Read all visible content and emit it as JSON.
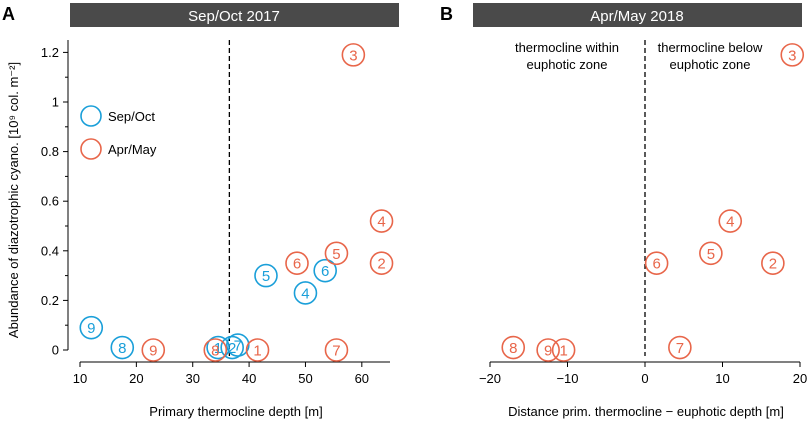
{
  "colors": {
    "sep_oct": "#1a9fd9",
    "apr_may": "#e8664a",
    "title_bar": "#4a4a4a"
  },
  "chart_data": [
    {
      "panel": "A",
      "type": "scatter",
      "title": "Sep/Oct 2017",
      "xlabel": "Primary thermocline depth [m]",
      "ylabel": "Abundance of diazotrophic cyano. [10⁹ col. m⁻²]",
      "xlim": [
        10,
        65
      ],
      "ylim": [
        0,
        1.25
      ],
      "xticks": [
        10,
        20,
        30,
        40,
        50,
        60
      ],
      "yticks": [
        0,
        0.2,
        0.4,
        0.6,
        0.8,
        1,
        1.2
      ],
      "ytick_labels": [
        "0",
        "0.2",
        "0.4",
        "0.6",
        "0.8",
        "1",
        "1.2"
      ],
      "reference_line_x": 36.5,
      "legend": [
        {
          "label": "Sep/Oct",
          "series": "sep_oct"
        },
        {
          "label": "Apr/May",
          "series": "apr_may"
        }
      ],
      "series": [
        {
          "name": "Sep/Oct",
          "key": "sep_oct",
          "points": [
            {
              "x": 12,
              "y": 0.09,
              "label": "9"
            },
            {
              "x": 17.5,
              "y": 0.01,
              "label": "8"
            },
            {
              "x": 34.5,
              "y": 0.01,
              "label": "1"
            },
            {
              "x": 37,
              "y": 0.01,
              "label": "2"
            },
            {
              "x": 38,
              "y": 0.02,
              "label": "7"
            },
            {
              "x": 43,
              "y": 0.3,
              "label": "5"
            },
            {
              "x": 50,
              "y": 0.23,
              "label": "4"
            },
            {
              "x": 53.5,
              "y": 0.32,
              "label": "6"
            }
          ]
        },
        {
          "name": "Apr/May",
          "key": "apr_may",
          "points": [
            {
              "x": 23,
              "y": 0.0,
              "label": "9"
            },
            {
              "x": 34,
              "y": 0.0,
              "label": "8"
            },
            {
              "x": 41.5,
              "y": 0.0,
              "label": "1"
            },
            {
              "x": 48.5,
              "y": 0.35,
              "label": "6"
            },
            {
              "x": 55.5,
              "y": 0.39,
              "label": "5"
            },
            {
              "x": 55.5,
              "y": 0.0,
              "label": "7"
            },
            {
              "x": 58.5,
              "y": 1.19,
              "label": "3"
            },
            {
              "x": 63.5,
              "y": 0.52,
              "label": "4"
            },
            {
              "x": 63.5,
              "y": 0.35,
              "label": "2"
            }
          ]
        }
      ]
    },
    {
      "panel": "B",
      "type": "scatter",
      "title": "Apr/May 2018",
      "xlabel": "Distance prim. thermocline − euphotic depth [m]",
      "xlim": [
        -20,
        20
      ],
      "ylim": [
        0,
        1.25
      ],
      "xticks": [
        -20,
        -10,
        0,
        10,
        20
      ],
      "xtick_labels": [
        "−20",
        "−10",
        "0",
        "10",
        "20"
      ],
      "reference_line_x": 0,
      "annotations": {
        "left": [
          "thermocline within",
          "euphotic zone"
        ],
        "right": [
          "thermocline below",
          "euphotic zone"
        ]
      },
      "series": [
        {
          "name": "Apr/May",
          "key": "apr_may",
          "points": [
            {
              "x": -17,
              "y": 0.01,
              "label": "8"
            },
            {
              "x": -12.5,
              "y": 0.0,
              "label": "9"
            },
            {
              "x": -10.5,
              "y": 0.0,
              "label": "1"
            },
            {
              "x": 1.5,
              "y": 0.35,
              "label": "6"
            },
            {
              "x": 4.5,
              "y": 0.01,
              "label": "7"
            },
            {
              "x": 8.5,
              "y": 0.39,
              "label": "5"
            },
            {
              "x": 11,
              "y": 0.52,
              "label": "4"
            },
            {
              "x": 16.5,
              "y": 0.35,
              "label": "2"
            },
            {
              "x": 19,
              "y": 1.19,
              "label": "3"
            }
          ]
        }
      ]
    }
  ]
}
